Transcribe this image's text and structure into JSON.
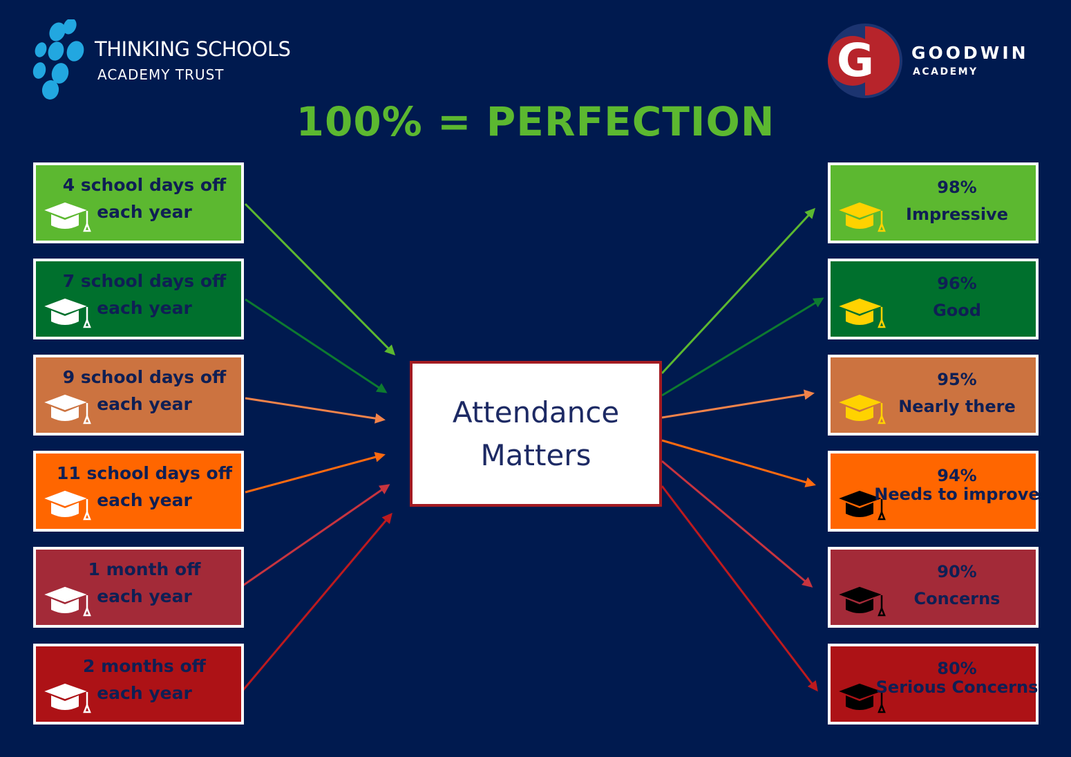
{
  "logos": {
    "left": {
      "line1": "THINKING SCHOOLS",
      "line2": "ACADEMY TRUST",
      "color": "#22a7e0"
    },
    "right": {
      "line1": "GOODWIN",
      "line2": "ACADEMY",
      "letter": "G",
      "color_red": "#b7242b",
      "color_navy": "#1c3470"
    }
  },
  "headline": "100% = PERFECTION",
  "center": {
    "line1": "Attendance",
    "line2": "Matters"
  },
  "left_boxes": [
    {
      "line1": "4 school days off",
      "line2": "each year",
      "color": "#5cb830",
      "cap": "graduation-cap-white-icon"
    },
    {
      "line1": "7 school days off",
      "line2": "each year",
      "color": "#00702d",
      "cap": "graduation-cap-white-icon"
    },
    {
      "line1": "9 school days off",
      "line2": "each year",
      "color": "#cc7340",
      "cap": "graduation-cap-white-icon"
    },
    {
      "line1": "11 school days off",
      "line2": "each year",
      "color": "#ff6600",
      "cap": "graduation-cap-white-icon"
    },
    {
      "line1": "1 month off",
      "line2": "each year",
      "color": "#a32a38",
      "cap": "graduation-cap-white-icon"
    },
    {
      "line1": "2 months off",
      "line2": "each year",
      "color": "#ad1216",
      "cap": "graduation-cap-white-icon"
    }
  ],
  "right_boxes": [
    {
      "line1": "98%",
      "line2": "Impressive",
      "color": "#5cb830",
      "cap": "graduation-cap-yellow-icon"
    },
    {
      "line1": "96%",
      "line2": "Good",
      "color": "#00702d",
      "cap": "graduation-cap-yellow-icon"
    },
    {
      "line1": "95%",
      "line2": "Nearly there",
      "color": "#cc7340",
      "cap": "graduation-cap-yellow-icon"
    },
    {
      "line1": "94%",
      "line2": "Needs to improve",
      "color": "#ff6600",
      "cap": "graduation-cap-black-icon"
    },
    {
      "line1": "90%",
      "line2": "Concerns",
      "color": "#a32a38",
      "cap": "graduation-cap-black-icon"
    },
    {
      "line1": "80%",
      "line2": "Serious Concerns",
      "color": "#ad1216",
      "cap": "graduation-cap-black-icon"
    }
  ],
  "arrow_colors": [
    "#5cb830",
    "#0d7a30",
    "#f2834a",
    "#ff6a10",
    "#c7343f",
    "#bd1a1e"
  ]
}
